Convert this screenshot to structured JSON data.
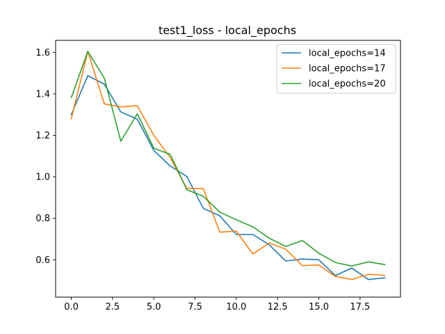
{
  "chart_data": {
    "type": "line",
    "title": "test1_loss - local_epochs",
    "xlabel": "",
    "ylabel": "",
    "xlim": [
      -0.95,
      19.95
    ],
    "ylim": [
      0.42,
      1.658
    ],
    "x_ticks": [
      0.0,
      2.5,
      5.0,
      7.5,
      10.0,
      12.5,
      15.0,
      17.5
    ],
    "x_tick_labels": [
      "0.0",
      "2.5",
      "5.0",
      "7.5",
      "10.0",
      "12.5",
      "15.0",
      "17.5"
    ],
    "y_ticks": [
      0.6,
      0.8,
      1.0,
      1.2,
      1.4,
      1.6
    ],
    "y_tick_labels": [
      "0.6",
      "0.8",
      "1.0",
      "1.2",
      "1.4",
      "1.6"
    ],
    "grid": false,
    "legend_position": "top-right",
    "x": [
      0,
      1,
      2,
      3,
      4,
      5,
      6,
      7,
      8,
      9,
      10,
      11,
      12,
      13,
      14,
      15,
      16,
      17,
      18,
      19
    ],
    "series": [
      {
        "name": "local_epochs=14",
        "color": "#1f77b4",
        "values": [
          1.3,
          1.488,
          1.447,
          1.313,
          1.278,
          1.127,
          1.052,
          1.002,
          0.848,
          0.812,
          0.722,
          0.722,
          0.672,
          0.594,
          0.604,
          0.6,
          0.524,
          0.56,
          0.505,
          0.513
        ]
      },
      {
        "name": "local_epochs=17",
        "color": "#ff7f0e",
        "values": [
          1.28,
          1.605,
          1.352,
          1.337,
          1.343,
          1.2,
          1.092,
          0.945,
          0.943,
          0.733,
          0.738,
          0.628,
          0.681,
          0.651,
          0.572,
          0.575,
          0.52,
          0.505,
          0.53,
          0.525
        ]
      },
      {
        "name": "local_epochs=20",
        "color": "#2ca02c",
        "values": [
          1.382,
          1.605,
          1.476,
          1.172,
          1.304,
          1.138,
          1.108,
          0.938,
          0.906,
          0.83,
          0.793,
          0.759,
          0.704,
          0.664,
          0.693,
          0.632,
          0.587,
          0.57,
          0.59,
          0.577
        ]
      }
    ]
  }
}
